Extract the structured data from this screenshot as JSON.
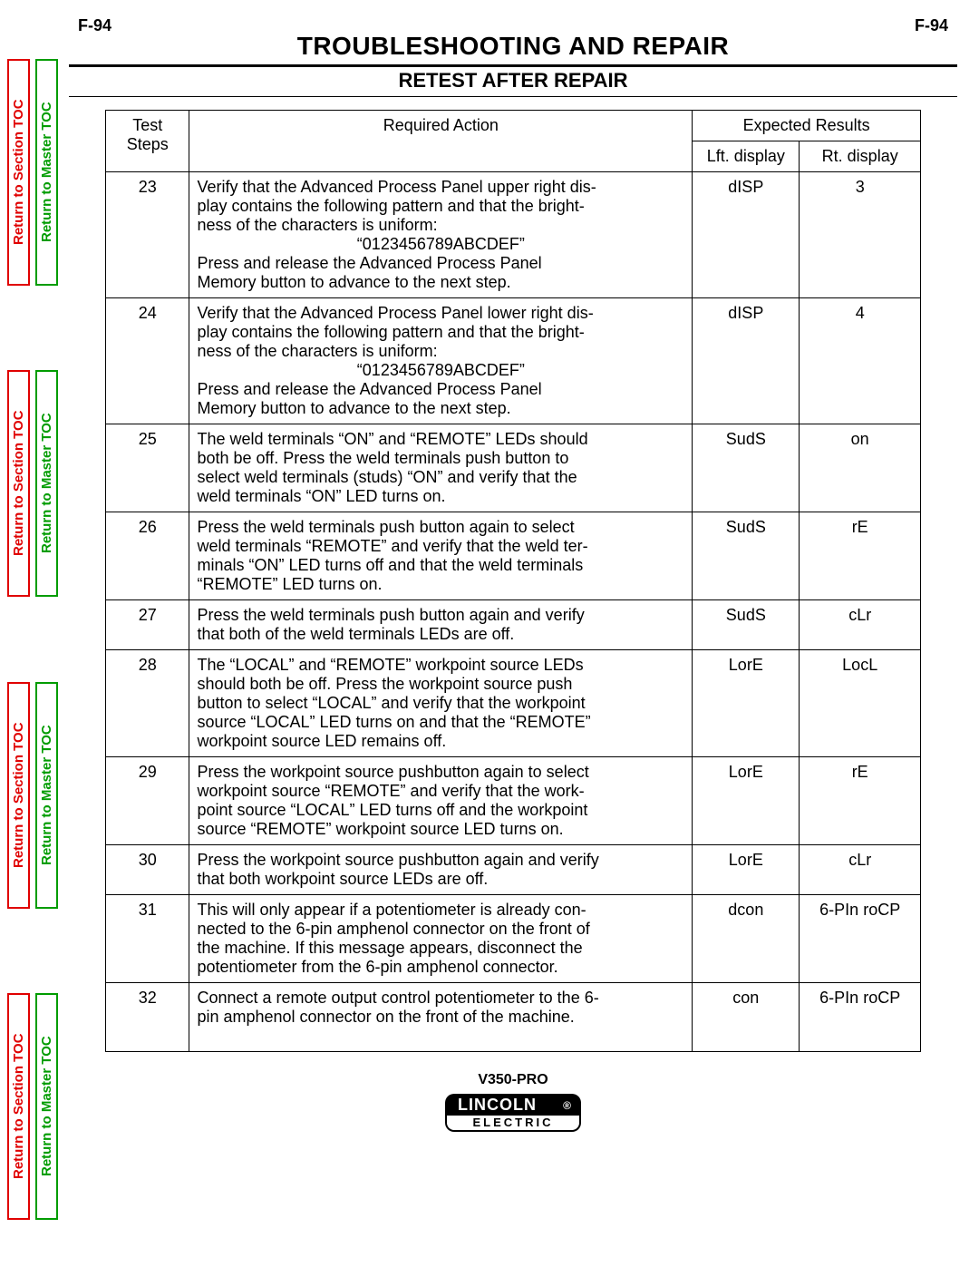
{
  "page_code": "F-94",
  "title_main": "TROUBLESHOOTING AND REPAIR",
  "title_sub": "RETEST AFTER REPAIR",
  "side_tabs": {
    "section": "Return to Section TOC",
    "master": "Return to Master TOC"
  },
  "table": {
    "headers": {
      "steps": "Test Steps",
      "action": "Required Action",
      "expected": "Expected Results",
      "lft": "Lft. display",
      "rt": "Rt. display"
    },
    "rows": [
      {
        "step": "23",
        "action_lines": [
          "Verify that the Advanced Process Panel upper right dis-",
          "play contains the following pattern and that the bright-",
          "ness of the characters is uniform:"
        ],
        "action_center": "“0123456789ABCDEF”",
        "action_lines2": [
          "Press and release the Advanced Process Panel",
          "Memory button to advance to the next step."
        ],
        "lft": "dISP",
        "rt": "3"
      },
      {
        "step": "24",
        "action_lines": [
          "Verify that the Advanced Process Panel lower right dis-",
          "play contains the following pattern and that the bright-",
          "ness of the characters is uniform:"
        ],
        "action_center": "“0123456789ABCDEF”",
        "action_lines2": [
          "Press and release the Advanced Process Panel",
          "Memory button to advance to the next step."
        ],
        "lft": "dISP",
        "rt": "4"
      },
      {
        "step": "25",
        "action_lines": [
          "The weld terminals “ON” and “REMOTE” LEDs should",
          "both be off.  Press the weld terminals push button to",
          "select weld terminals (studs) “ON” and verify that the",
          "weld terminals “ON” LED turns on."
        ],
        "lft": "SudS",
        "rt": "on"
      },
      {
        "step": "26",
        "action_lines": [
          "Press the weld terminals push button again to select",
          "weld terminals “REMOTE” and verify that the weld ter-",
          "minals “ON” LED turns off and that the weld terminals",
          "“REMOTE” LED turns on."
        ],
        "lft": "SudS",
        "rt": "rE"
      },
      {
        "step": "27",
        "action_lines": [
          "Press the weld terminals push button again and verify",
          "that both of the weld terminals LEDs are off."
        ],
        "lft": "SudS",
        "rt": "cLr"
      },
      {
        "step": "28",
        "action_lines": [
          "The “LOCAL” and “REMOTE” workpoint source LEDs",
          "should both be off.  Press the workpoint source push",
          "button to select “LOCAL” and verify that the workpoint",
          "source “LOCAL” LED turns on and that the “REMOTE”",
          "workpoint source LED remains off."
        ],
        "lft": "LorE",
        "rt": "LocL"
      },
      {
        "step": "29",
        "action_lines": [
          "Press the workpoint source pushbutton again to select",
          "workpoint source “REMOTE” and verify that the work-",
          "point source “LOCAL” LED turns off and the workpoint",
          "source “REMOTE” workpoint source LED turns on."
        ],
        "lft": "LorE",
        "rt": "rE"
      },
      {
        "step": "30",
        "action_lines": [
          "Press the workpoint source pushbutton again and verify",
          "that both workpoint source LEDs are off."
        ],
        "lft": "LorE",
        "rt": "cLr"
      },
      {
        "step": "31",
        "action_lines": [
          "This will only appear if a potentiometer is already con-",
          "nected to the 6-pin amphenol connector on the front of",
          "the machine.  If this message appears, disconnect the",
          "potentiometer from the 6-pin amphenol connector."
        ],
        "lft": "dcon",
        "rt": "6-PIn roCP"
      },
      {
        "step": "32",
        "action_lines": [
          "Connect a remote output control potentiometer to the 6-",
          "pin amphenol connector on the front of the machine."
        ],
        "action_lines2": [
          ""
        ],
        "lft": "con",
        "rt": "6-PIn roCP"
      }
    ]
  },
  "footer": {
    "model": "V350-PRO",
    "brand_top": "LINCOLN",
    "brand_bot": "ELECTRIC",
    "reg": "®"
  },
  "colors": {
    "red": "#e00000",
    "green": "#009c00",
    "black": "#000000",
    "white": "#ffffff"
  }
}
